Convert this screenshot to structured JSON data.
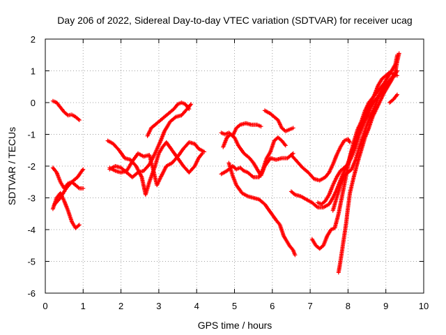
{
  "chart_data": {
    "type": "scatter",
    "title": "Day 206 of 2022, Sidereal Day-to-day VTEC variation (SDTVAR) for receiver ucag",
    "xlabel": "GPS time / hours",
    "ylabel": "SDTVAR / TECUs",
    "xlim": [
      0,
      10
    ],
    "ylim": [
      -6,
      2
    ],
    "xticks": [
      "0",
      "1",
      "2",
      "3",
      "4",
      "5",
      "6",
      "7",
      "8",
      "9",
      "10"
    ],
    "yticks": [
      "-6",
      "-5",
      "-4",
      "-3",
      "-2",
      "-1",
      "0",
      "1",
      "2"
    ],
    "grid": true,
    "marker": "+",
    "color": "#ff0000",
    "series": [
      {
        "points": [
          [
            0.2,
            0.05
          ],
          [
            0.3,
            0.0
          ],
          [
            0.4,
            -0.15
          ],
          [
            0.5,
            -0.3
          ],
          [
            0.6,
            -0.4
          ],
          [
            0.7,
            -0.38
          ],
          [
            0.8,
            -0.45
          ],
          [
            0.9,
            -0.55
          ]
        ]
      },
      {
        "points": [
          [
            0.2,
            -2.05
          ],
          [
            0.3,
            -2.2
          ],
          [
            0.4,
            -2.5
          ],
          [
            0.5,
            -2.7
          ],
          [
            0.6,
            -2.55
          ],
          [
            0.7,
            -2.5
          ],
          [
            0.8,
            -2.6
          ],
          [
            0.9,
            -2.7
          ],
          [
            1.0,
            -2.7
          ]
        ]
      },
      {
        "points": [
          [
            0.2,
            -3.35
          ],
          [
            0.3,
            -3.0
          ],
          [
            0.4,
            -2.85
          ],
          [
            0.5,
            -3.1
          ],
          [
            0.6,
            -3.4
          ],
          [
            0.7,
            -3.75
          ],
          [
            0.8,
            -3.95
          ],
          [
            0.9,
            -3.85
          ]
        ]
      },
      {
        "points": [
          [
            0.25,
            -3.2
          ],
          [
            0.4,
            -3.0
          ],
          [
            0.55,
            -2.7
          ],
          [
            0.7,
            -2.5
          ],
          [
            0.85,
            -2.35
          ],
          [
            1.0,
            -2.1
          ]
        ]
      },
      {
        "points": [
          [
            1.65,
            -1.2
          ],
          [
            1.8,
            -1.3
          ],
          [
            1.95,
            -1.5
          ],
          [
            2.1,
            -1.75
          ],
          [
            2.25,
            -1.8
          ],
          [
            2.4,
            -2.0
          ],
          [
            2.55,
            -2.35
          ],
          [
            2.65,
            -2.9
          ],
          [
            2.75,
            -2.5
          ],
          [
            2.9,
            -2.0
          ],
          [
            3.0,
            -1.6
          ],
          [
            3.1,
            -1.4
          ],
          [
            3.2,
            -1.25
          ],
          [
            3.35,
            -1.5
          ],
          [
            3.5,
            -1.75
          ],
          [
            3.65,
            -2.0
          ],
          [
            3.8,
            -2.2
          ],
          [
            3.95,
            -2.0
          ],
          [
            4.05,
            -1.75
          ],
          [
            4.15,
            -1.6
          ]
        ]
      },
      {
        "points": [
          [
            1.7,
            -2.1
          ],
          [
            1.85,
            -2.0
          ],
          [
            2.0,
            -2.05
          ],
          [
            2.15,
            -2.2
          ],
          [
            2.3,
            -2.35
          ],
          [
            2.45,
            -2.2
          ],
          [
            2.6,
            -2.15
          ],
          [
            2.75,
            -1.95
          ],
          [
            2.9,
            -1.6
          ],
          [
            3.05,
            -1.2
          ],
          [
            3.15,
            -0.9
          ],
          [
            3.3,
            -0.6
          ],
          [
            3.45,
            -0.45
          ],
          [
            3.6,
            -0.4
          ],
          [
            3.75,
            -0.2
          ],
          [
            3.85,
            -0.05
          ]
        ]
      },
      {
        "points": [
          [
            1.7,
            -2.05
          ],
          [
            1.85,
            -2.15
          ],
          [
            2.0,
            -2.2
          ],
          [
            2.15,
            -2.15
          ],
          [
            2.3,
            -1.85
          ],
          [
            2.45,
            -1.6
          ],
          [
            2.6,
            -1.7
          ],
          [
            2.75,
            -1.65
          ],
          [
            2.85,
            -2.1
          ],
          [
            2.95,
            -2.6
          ],
          [
            3.05,
            -2.35
          ],
          [
            3.2,
            -2.0
          ],
          [
            3.35,
            -1.9
          ],
          [
            3.5,
            -1.7
          ],
          [
            3.65,
            -1.45
          ],
          [
            3.8,
            -1.25
          ],
          [
            3.95,
            -1.3
          ],
          [
            4.05,
            -1.45
          ],
          [
            4.2,
            -1.55
          ]
        ]
      },
      {
        "points": [
          [
            2.7,
            -1.05
          ],
          [
            2.8,
            -0.8
          ],
          [
            2.95,
            -0.65
          ],
          [
            3.1,
            -0.5
          ],
          [
            3.25,
            -0.35
          ],
          [
            3.4,
            -0.2
          ],
          [
            3.5,
            -0.05
          ],
          [
            3.6,
            0.0
          ],
          [
            3.7,
            -0.05
          ],
          [
            3.8,
            -0.2
          ]
        ]
      },
      {
        "points": [
          [
            4.65,
            -0.95
          ],
          [
            4.75,
            -1.0
          ],
          [
            4.85,
            -0.95
          ],
          [
            4.95,
            -1.05
          ],
          [
            5.05,
            -0.8
          ],
          [
            5.15,
            -0.7
          ],
          [
            5.3,
            -0.65
          ],
          [
            5.45,
            -0.7
          ],
          [
            5.6,
            -0.7
          ],
          [
            5.7,
            -0.75
          ]
        ]
      },
      {
        "points": [
          [
            4.65,
            -2.25
          ],
          [
            4.8,
            -2.15
          ],
          [
            4.95,
            -2.0
          ],
          [
            5.05,
            -2.1
          ],
          [
            5.15,
            -2.05
          ],
          [
            5.25,
            -2.15
          ],
          [
            5.35,
            -2.2
          ],
          [
            5.5,
            -2.35
          ],
          [
            5.65,
            -2.35
          ],
          [
            5.75,
            -2.1
          ],
          [
            5.85,
            -1.75
          ],
          [
            5.95,
            -1.55
          ],
          [
            6.05,
            -1.2
          ],
          [
            6.15,
            -1.1
          ],
          [
            6.25,
            -1.2
          ],
          [
            6.35,
            -1.35
          ]
        ]
      },
      {
        "points": [
          [
            4.7,
            -1.4
          ],
          [
            4.8,
            -1.1
          ],
          [
            4.9,
            -1.0
          ],
          [
            5.0,
            -1.1
          ],
          [
            5.1,
            -1.35
          ],
          [
            5.25,
            -1.6
          ],
          [
            5.4,
            -1.75
          ],
          [
            5.5,
            -1.9
          ],
          [
            5.6,
            -2.1
          ],
          [
            5.7,
            -2.3
          ],
          [
            5.8,
            -2.0
          ],
          [
            5.95,
            -1.75
          ],
          [
            6.1,
            -1.8
          ],
          [
            6.25,
            -1.75
          ],
          [
            6.4,
            -1.75
          ],
          [
            6.5,
            -1.65
          ],
          [
            6.55,
            -1.6
          ]
        ]
      },
      {
        "points": [
          [
            4.85,
            -1.9
          ],
          [
            4.95,
            -2.3
          ],
          [
            5.05,
            -2.6
          ],
          [
            5.2,
            -2.85
          ],
          [
            5.35,
            -2.95
          ],
          [
            5.5,
            -3.0
          ],
          [
            5.65,
            -3.05
          ],
          [
            5.8,
            -3.2
          ],
          [
            5.95,
            -3.45
          ],
          [
            6.1,
            -3.7
          ],
          [
            6.2,
            -3.85
          ],
          [
            6.3,
            -4.2
          ],
          [
            6.45,
            -4.5
          ],
          [
            6.55,
            -4.65
          ],
          [
            6.6,
            -4.8
          ]
        ]
      },
      {
        "points": [
          [
            5.8,
            -0.25
          ],
          [
            5.95,
            -0.35
          ],
          [
            6.05,
            -0.45
          ],
          [
            6.15,
            -0.55
          ],
          [
            6.25,
            -0.8
          ],
          [
            6.35,
            -0.9
          ],
          [
            6.45,
            -0.85
          ],
          [
            6.55,
            -0.8
          ]
        ]
      },
      {
        "points": [
          [
            6.5,
            -1.65
          ],
          [
            6.65,
            -1.85
          ],
          [
            6.8,
            -2.05
          ],
          [
            6.95,
            -2.2
          ],
          [
            7.1,
            -2.4
          ],
          [
            7.25,
            -2.45
          ],
          [
            7.4,
            -2.35
          ],
          [
            7.5,
            -2.2
          ],
          [
            7.6,
            -1.95
          ],
          [
            7.7,
            -1.65
          ],
          [
            7.8,
            -1.4
          ],
          [
            7.9,
            -1.2
          ],
          [
            8.0,
            -1.15
          ],
          [
            8.05,
            -1.25
          ]
        ]
      },
      {
        "points": [
          [
            6.5,
            -2.8
          ],
          [
            6.6,
            -2.9
          ],
          [
            6.75,
            -2.95
          ],
          [
            6.9,
            -3.05
          ],
          [
            7.05,
            -3.15
          ],
          [
            7.2,
            -3.3
          ],
          [
            7.35,
            -3.3
          ],
          [
            7.5,
            -3.2
          ],
          [
            7.6,
            -3.0
          ],
          [
            7.7,
            -2.75
          ],
          [
            7.8,
            -2.45
          ],
          [
            7.9,
            -2.15
          ],
          [
            8.0,
            -1.9
          ],
          [
            8.1,
            -1.55
          ],
          [
            8.2,
            -1.25
          ],
          [
            8.3,
            -0.85
          ],
          [
            8.4,
            -0.55
          ],
          [
            8.5,
            -0.3
          ],
          [
            8.6,
            0.0
          ],
          [
            8.7,
            0.25
          ],
          [
            8.8,
            0.55
          ],
          [
            8.9,
            0.75
          ],
          [
            9.0,
            0.85
          ],
          [
            9.1,
            0.95
          ],
          [
            9.2,
            0.9
          ],
          [
            9.3,
            0.85
          ]
        ]
      },
      {
        "points": [
          [
            7.05,
            -4.3
          ],
          [
            7.15,
            -4.5
          ],
          [
            7.25,
            -4.6
          ],
          [
            7.35,
            -4.5
          ],
          [
            7.45,
            -4.2
          ],
          [
            7.55,
            -4.0
          ],
          [
            7.65,
            -3.95
          ],
          [
            7.75,
            -3.5
          ],
          [
            7.85,
            -2.9
          ],
          [
            7.95,
            -2.3
          ],
          [
            8.05,
            -1.7
          ],
          [
            8.15,
            -1.25
          ],
          [
            8.25,
            -0.85
          ],
          [
            8.35,
            -0.6
          ],
          [
            8.45,
            -0.25
          ],
          [
            8.55,
            0.0
          ],
          [
            8.65,
            0.15
          ],
          [
            8.75,
            0.3
          ],
          [
            8.85,
            0.45
          ],
          [
            8.95,
            0.6
          ],
          [
            9.05,
            0.8
          ],
          [
            9.15,
            1.0
          ],
          [
            9.25,
            1.2
          ],
          [
            9.3,
            1.5
          ]
        ]
      },
      {
        "points": [
          [
            7.75,
            -5.35
          ],
          [
            7.8,
            -5.0
          ],
          [
            7.85,
            -4.6
          ],
          [
            7.9,
            -4.2
          ],
          [
            7.95,
            -3.8
          ],
          [
            8.0,
            -3.3
          ],
          [
            8.05,
            -2.85
          ],
          [
            8.15,
            -2.35
          ],
          [
            8.25,
            -1.9
          ],
          [
            8.35,
            -1.5
          ],
          [
            8.45,
            -1.1
          ],
          [
            8.55,
            -0.8
          ],
          [
            8.65,
            -0.45
          ],
          [
            8.75,
            -0.2
          ],
          [
            8.85,
            0.05
          ],
          [
            8.95,
            0.3
          ],
          [
            9.05,
            0.5
          ],
          [
            9.15,
            0.7
          ],
          [
            9.25,
            0.95
          ],
          [
            9.3,
            1.3
          ],
          [
            9.35,
            1.55
          ]
        ]
      },
      {
        "points": [
          [
            7.2,
            -3.15
          ],
          [
            7.3,
            -3.2
          ],
          [
            7.4,
            -3.1
          ],
          [
            7.5,
            -2.9
          ],
          [
            7.6,
            -2.6
          ],
          [
            7.7,
            -2.35
          ],
          [
            7.8,
            -2.15
          ],
          [
            7.9,
            -2.05
          ],
          [
            8.0,
            -1.95
          ],
          [
            8.1,
            -1.7
          ],
          [
            8.2,
            -1.4
          ],
          [
            8.3,
            -1.0
          ],
          [
            8.4,
            -0.7
          ],
          [
            8.5,
            -0.45
          ],
          [
            8.6,
            -0.15
          ],
          [
            8.7,
            0.05
          ],
          [
            8.8,
            0.2
          ],
          [
            8.9,
            0.4
          ],
          [
            9.0,
            0.55
          ],
          [
            9.1,
            0.7
          ],
          [
            9.2,
            0.8
          ],
          [
            9.3,
            1.0
          ]
        ]
      },
      {
        "points": [
          [
            7.6,
            -3.4
          ],
          [
            7.7,
            -3.0
          ],
          [
            7.8,
            -2.6
          ],
          [
            7.9,
            -2.3
          ],
          [
            8.0,
            -2.2
          ],
          [
            8.1,
            -2.1
          ],
          [
            8.2,
            -1.8
          ],
          [
            8.3,
            -1.4
          ],
          [
            8.4,
            -1.05
          ],
          [
            8.5,
            -0.7
          ],
          [
            8.6,
            -0.4
          ],
          [
            8.7,
            -0.15
          ],
          [
            8.8,
            0.15
          ],
          [
            8.9,
            0.35
          ],
          [
            9.0,
            0.55
          ],
          [
            9.1,
            0.7
          ],
          [
            9.2,
            0.85
          ]
        ]
      },
      {
        "points": [
          [
            9.1,
            0.0
          ],
          [
            9.2,
            0.1
          ],
          [
            9.3,
            0.25
          ]
        ]
      }
    ]
  }
}
